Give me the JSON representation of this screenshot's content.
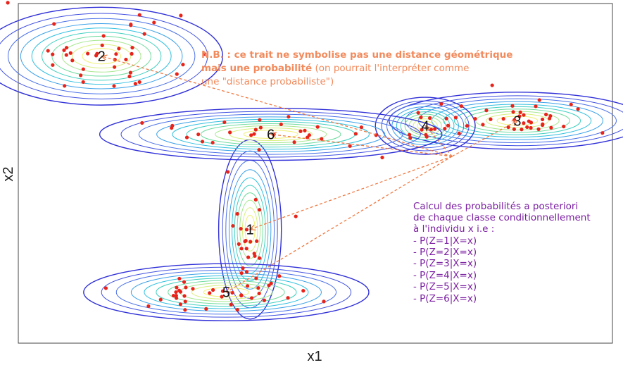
{
  "chart_data": {
    "type": "scatter",
    "title": "",
    "xlabel": "x1",
    "ylabel": "x2",
    "grid": false,
    "xlim": [
      0,
      100
    ],
    "ylim": [
      0,
      100
    ],
    "clusters": [
      {
        "label": "1",
        "center": [
          39.0,
          33.5
        ],
        "sx": 2.2,
        "sy": 11.0,
        "n": 22
      },
      {
        "label": "2",
        "center": [
          14.0,
          84.5
        ],
        "sx": 8.5,
        "sy": 6.0,
        "n": 40
      },
      {
        "label": "3",
        "center": [
          84.0,
          65.5
        ],
        "sx": 9.0,
        "sy": 3.5,
        "n": 40
      },
      {
        "label": "4",
        "center": [
          68.5,
          64.0
        ],
        "sx": 3.5,
        "sy": 3.5,
        "n": 14
      },
      {
        "label": "5",
        "center": [
          35.0,
          15.0
        ],
        "sx": 10.0,
        "sy": 3.5,
        "n": 40
      },
      {
        "label": "6",
        "center": [
          42.5,
          61.5
        ],
        "sx": 12.0,
        "sy": 3.2,
        "n": 30
      }
    ],
    "query_point": [
      73.0,
      55.0
    ],
    "colors": {
      "points": "#e8231a",
      "arrows": "#f07840",
      "annotation": "#f28a5c",
      "calc": "#7b1fa2",
      "frame": "#444444"
    }
  },
  "annotation": {
    "line1": "N.B. : ce trait ne symbolise pas une distance géométrique",
    "line2_bold": "mais une probabilité",
    "line2_normal": " (on pourrait l'interpréter comme",
    "line3": "une \"distance probabiliste\")"
  },
  "calc": {
    "lines": [
      "Calcul des probabilités a posteriori",
      "de chaque classe conditionnellement",
      "à l'individu x i.e :",
      "- P(Z=1|X=x)",
      "- P(Z=2|X=x)",
      "- P(Z=3|X=x)",
      "- P(Z=4|X=x)",
      "- P(Z=5|X=x)",
      "- P(Z=6|X=x)"
    ]
  }
}
